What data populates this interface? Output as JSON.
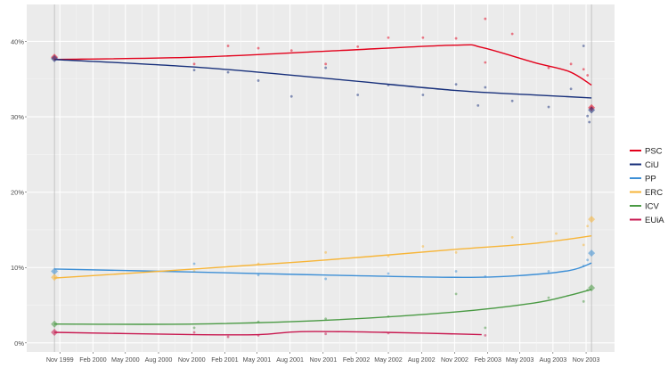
{
  "chart_data": {
    "type": "line",
    "title": "",
    "xlabel": "",
    "ylabel": "",
    "xlim": [
      "1999-08-01",
      "2004-01-19"
    ],
    "ylim": [
      -1.2,
      44.9
    ],
    "grid": true,
    "legend_position": "right",
    "x_ticks": [
      {
        "date": "1999-11-01",
        "label": "Nov 1999"
      },
      {
        "date": "2000-02-01",
        "label": "Feb 2000"
      },
      {
        "date": "2000-05-01",
        "label": "May 2000"
      },
      {
        "date": "2000-08-01",
        "label": "Aug 2000"
      },
      {
        "date": "2000-11-01",
        "label": "Nov 2000"
      },
      {
        "date": "2001-02-01",
        "label": "Feb 2001"
      },
      {
        "date": "2001-05-01",
        "label": "May 2001"
      },
      {
        "date": "2001-08-01",
        "label": "Aug 2001"
      },
      {
        "date": "2001-11-01",
        "label": "Nov 2001"
      },
      {
        "date": "2002-02-01",
        "label": "Feb 2002"
      },
      {
        "date": "2002-05-01",
        "label": "May 2002"
      },
      {
        "date": "2002-08-01",
        "label": "Aug 2002"
      },
      {
        "date": "2002-11-01",
        "label": "Nov 2002"
      },
      {
        "date": "2003-02-01",
        "label": "Feb 2003"
      },
      {
        "date": "2003-05-01",
        "label": "May 2003"
      },
      {
        "date": "2003-08-01",
        "label": "Aug 2003"
      },
      {
        "date": "2003-11-01",
        "label": "Nov 2003"
      }
    ],
    "y_ticks": [
      {
        "value": 0,
        "label": "0%"
      },
      {
        "value": 10,
        "label": "10%"
      },
      {
        "value": 20,
        "label": "20%"
      },
      {
        "value": 30,
        "label": "30%"
      },
      {
        "value": 40,
        "label": "40%"
      }
    ],
    "election_dates": [
      "1999-10-17",
      "2003-11-16"
    ],
    "series": [
      {
        "name": "PSC",
        "color": "#e3001b",
        "trend": [
          [
            "1999-10-17",
            37.6
          ],
          [
            "2000-11-08",
            37.9
          ],
          [
            "2001-11-08",
            38.7
          ],
          [
            "2002-11-01",
            39.5
          ],
          [
            "2003-01-15",
            39.2
          ],
          [
            "2003-06-10",
            37.2
          ],
          [
            "2003-09-15",
            36.0
          ],
          [
            "2003-11-16",
            34.2
          ]
        ],
        "polls": [
          [
            "2000-11-08",
            37.0
          ],
          [
            "2001-02-10",
            39.4
          ],
          [
            "2001-05-05",
            39.1
          ],
          [
            "2001-08-05",
            38.8
          ],
          [
            "2001-11-08",
            37.0
          ],
          [
            "2002-02-05",
            39.3
          ],
          [
            "2002-05-01",
            40.5
          ],
          [
            "2002-08-05",
            40.5
          ],
          [
            "2002-11-05",
            40.4
          ],
          [
            "2003-01-25",
            43.0
          ],
          [
            "2003-01-25",
            37.2
          ],
          [
            "2003-04-10",
            41.0
          ],
          [
            "2003-07-20",
            36.5
          ],
          [
            "2003-09-20",
            37.0
          ],
          [
            "2003-10-25",
            36.3
          ],
          [
            "2003-11-05",
            35.5
          ],
          [
            "2003-11-16",
            31.2
          ]
        ],
        "election": [
          [
            "1999-10-17",
            37.9
          ],
          [
            "2003-11-16",
            31.2
          ]
        ]
      },
      {
        "name": "CiU",
        "color": "#18307b",
        "trend": [
          [
            "1999-10-17",
            37.6
          ],
          [
            "2000-11-08",
            36.6
          ],
          [
            "2001-11-08",
            35.1
          ],
          [
            "2002-11-01",
            33.5
          ],
          [
            "2003-06-10",
            32.9
          ],
          [
            "2003-11-16",
            32.5
          ]
        ],
        "polls": [
          [
            "2000-11-08",
            36.2
          ],
          [
            "2001-02-10",
            35.9
          ],
          [
            "2001-05-05",
            34.8
          ],
          [
            "2001-08-05",
            32.7
          ],
          [
            "2001-11-08",
            36.5
          ],
          [
            "2002-02-05",
            32.9
          ],
          [
            "2002-05-01",
            34.2
          ],
          [
            "2002-08-05",
            32.9
          ],
          [
            "2002-11-05",
            34.3
          ],
          [
            "2003-01-05",
            31.5
          ],
          [
            "2003-01-25",
            33.9
          ],
          [
            "2003-04-10",
            32.1
          ],
          [
            "2003-07-20",
            31.3
          ],
          [
            "2003-09-20",
            33.7
          ],
          [
            "2003-10-25",
            39.4
          ],
          [
            "2003-11-05",
            30.1
          ],
          [
            "2003-11-10",
            29.3
          ]
        ],
        "election": [
          [
            "1999-10-17",
            37.7
          ],
          [
            "2003-11-16",
            30.9
          ]
        ]
      },
      {
        "name": "PP",
        "color": "#3d8fd6",
        "trend": [
          [
            "1999-10-17",
            9.8
          ],
          [
            "2000-11-08",
            9.4
          ],
          [
            "2001-11-08",
            9.0
          ],
          [
            "2002-11-01",
            8.7
          ],
          [
            "2003-04-20",
            8.9
          ],
          [
            "2003-09-15",
            9.6
          ],
          [
            "2003-11-16",
            10.6
          ]
        ],
        "polls": [
          [
            "2000-11-08",
            10.5
          ],
          [
            "2001-05-05",
            9.0
          ],
          [
            "2001-11-08",
            8.5
          ],
          [
            "2002-05-01",
            9.2
          ],
          [
            "2002-11-05",
            9.5
          ],
          [
            "2003-01-25",
            8.8
          ],
          [
            "2003-07-20",
            9.5
          ],
          [
            "2003-10-25",
            10.2
          ],
          [
            "2003-11-05",
            11.0
          ]
        ],
        "election": [
          [
            "1999-10-17",
            9.5
          ],
          [
            "2003-11-16",
            11.9
          ]
        ]
      },
      {
        "name": "ERC",
        "color": "#f7b538",
        "trend": [
          [
            "1999-10-17",
            8.6
          ],
          [
            "2000-11-08",
            9.8
          ],
          [
            "2001-11-08",
            11.0
          ],
          [
            "2002-11-01",
            12.4
          ],
          [
            "2003-06-10",
            13.2
          ],
          [
            "2003-11-16",
            14.2
          ]
        ],
        "polls": [
          [
            "2000-11-08",
            9.5
          ],
          [
            "2001-05-05",
            10.5
          ],
          [
            "2001-11-08",
            12.0
          ],
          [
            "2002-05-01",
            11.5
          ],
          [
            "2002-08-05",
            12.8
          ],
          [
            "2002-11-05",
            12.0
          ],
          [
            "2003-04-10",
            14.0
          ],
          [
            "2003-08-10",
            14.5
          ],
          [
            "2003-10-25",
            13.0
          ],
          [
            "2003-11-05",
            15.5
          ]
        ],
        "election": [
          [
            "1999-10-17",
            8.7
          ],
          [
            "2003-11-16",
            16.4
          ]
        ]
      },
      {
        "name": "ICV",
        "color": "#4a9a44",
        "trend": [
          [
            "1999-10-17",
            2.5
          ],
          [
            "2000-11-08",
            2.5
          ],
          [
            "2001-11-08",
            3.0
          ],
          [
            "2002-11-01",
            4.1
          ],
          [
            "2003-06-10",
            5.3
          ],
          [
            "2003-09-15",
            6.3
          ],
          [
            "2003-11-16",
            7.1
          ]
        ],
        "polls": [
          [
            "2000-11-08",
            2.0
          ],
          [
            "2001-05-05",
            2.8
          ],
          [
            "2001-11-08",
            3.2
          ],
          [
            "2002-05-01",
            3.5
          ],
          [
            "2002-11-05",
            6.5
          ],
          [
            "2003-01-25",
            2.0
          ],
          [
            "2003-07-20",
            6.0
          ],
          [
            "2003-10-25",
            5.5
          ],
          [
            "2003-11-05",
            7.0
          ]
        ],
        "election": [
          [
            "1999-10-17",
            2.5
          ],
          [
            "2003-11-16",
            7.3
          ]
        ]
      },
      {
        "name": "EUiA",
        "color": "#c8174f",
        "trend": [
          [
            "1999-10-17",
            1.4
          ],
          [
            "2000-11-08",
            1.1
          ],
          [
            "2001-05-05",
            1.1
          ],
          [
            "2001-09-05",
            1.5
          ],
          [
            "2002-04-20",
            1.4
          ],
          [
            "2003-01-15",
            1.1
          ]
        ],
        "polls": [
          [
            "2000-11-08",
            1.4
          ],
          [
            "2001-02-10",
            0.8
          ],
          [
            "2001-05-05",
            1.0
          ],
          [
            "2001-11-08",
            1.2
          ],
          [
            "2002-05-01",
            1.3
          ],
          [
            "2003-01-25",
            1.0
          ]
        ],
        "election": [
          [
            "1999-10-17",
            1.4
          ]
        ]
      }
    ]
  }
}
